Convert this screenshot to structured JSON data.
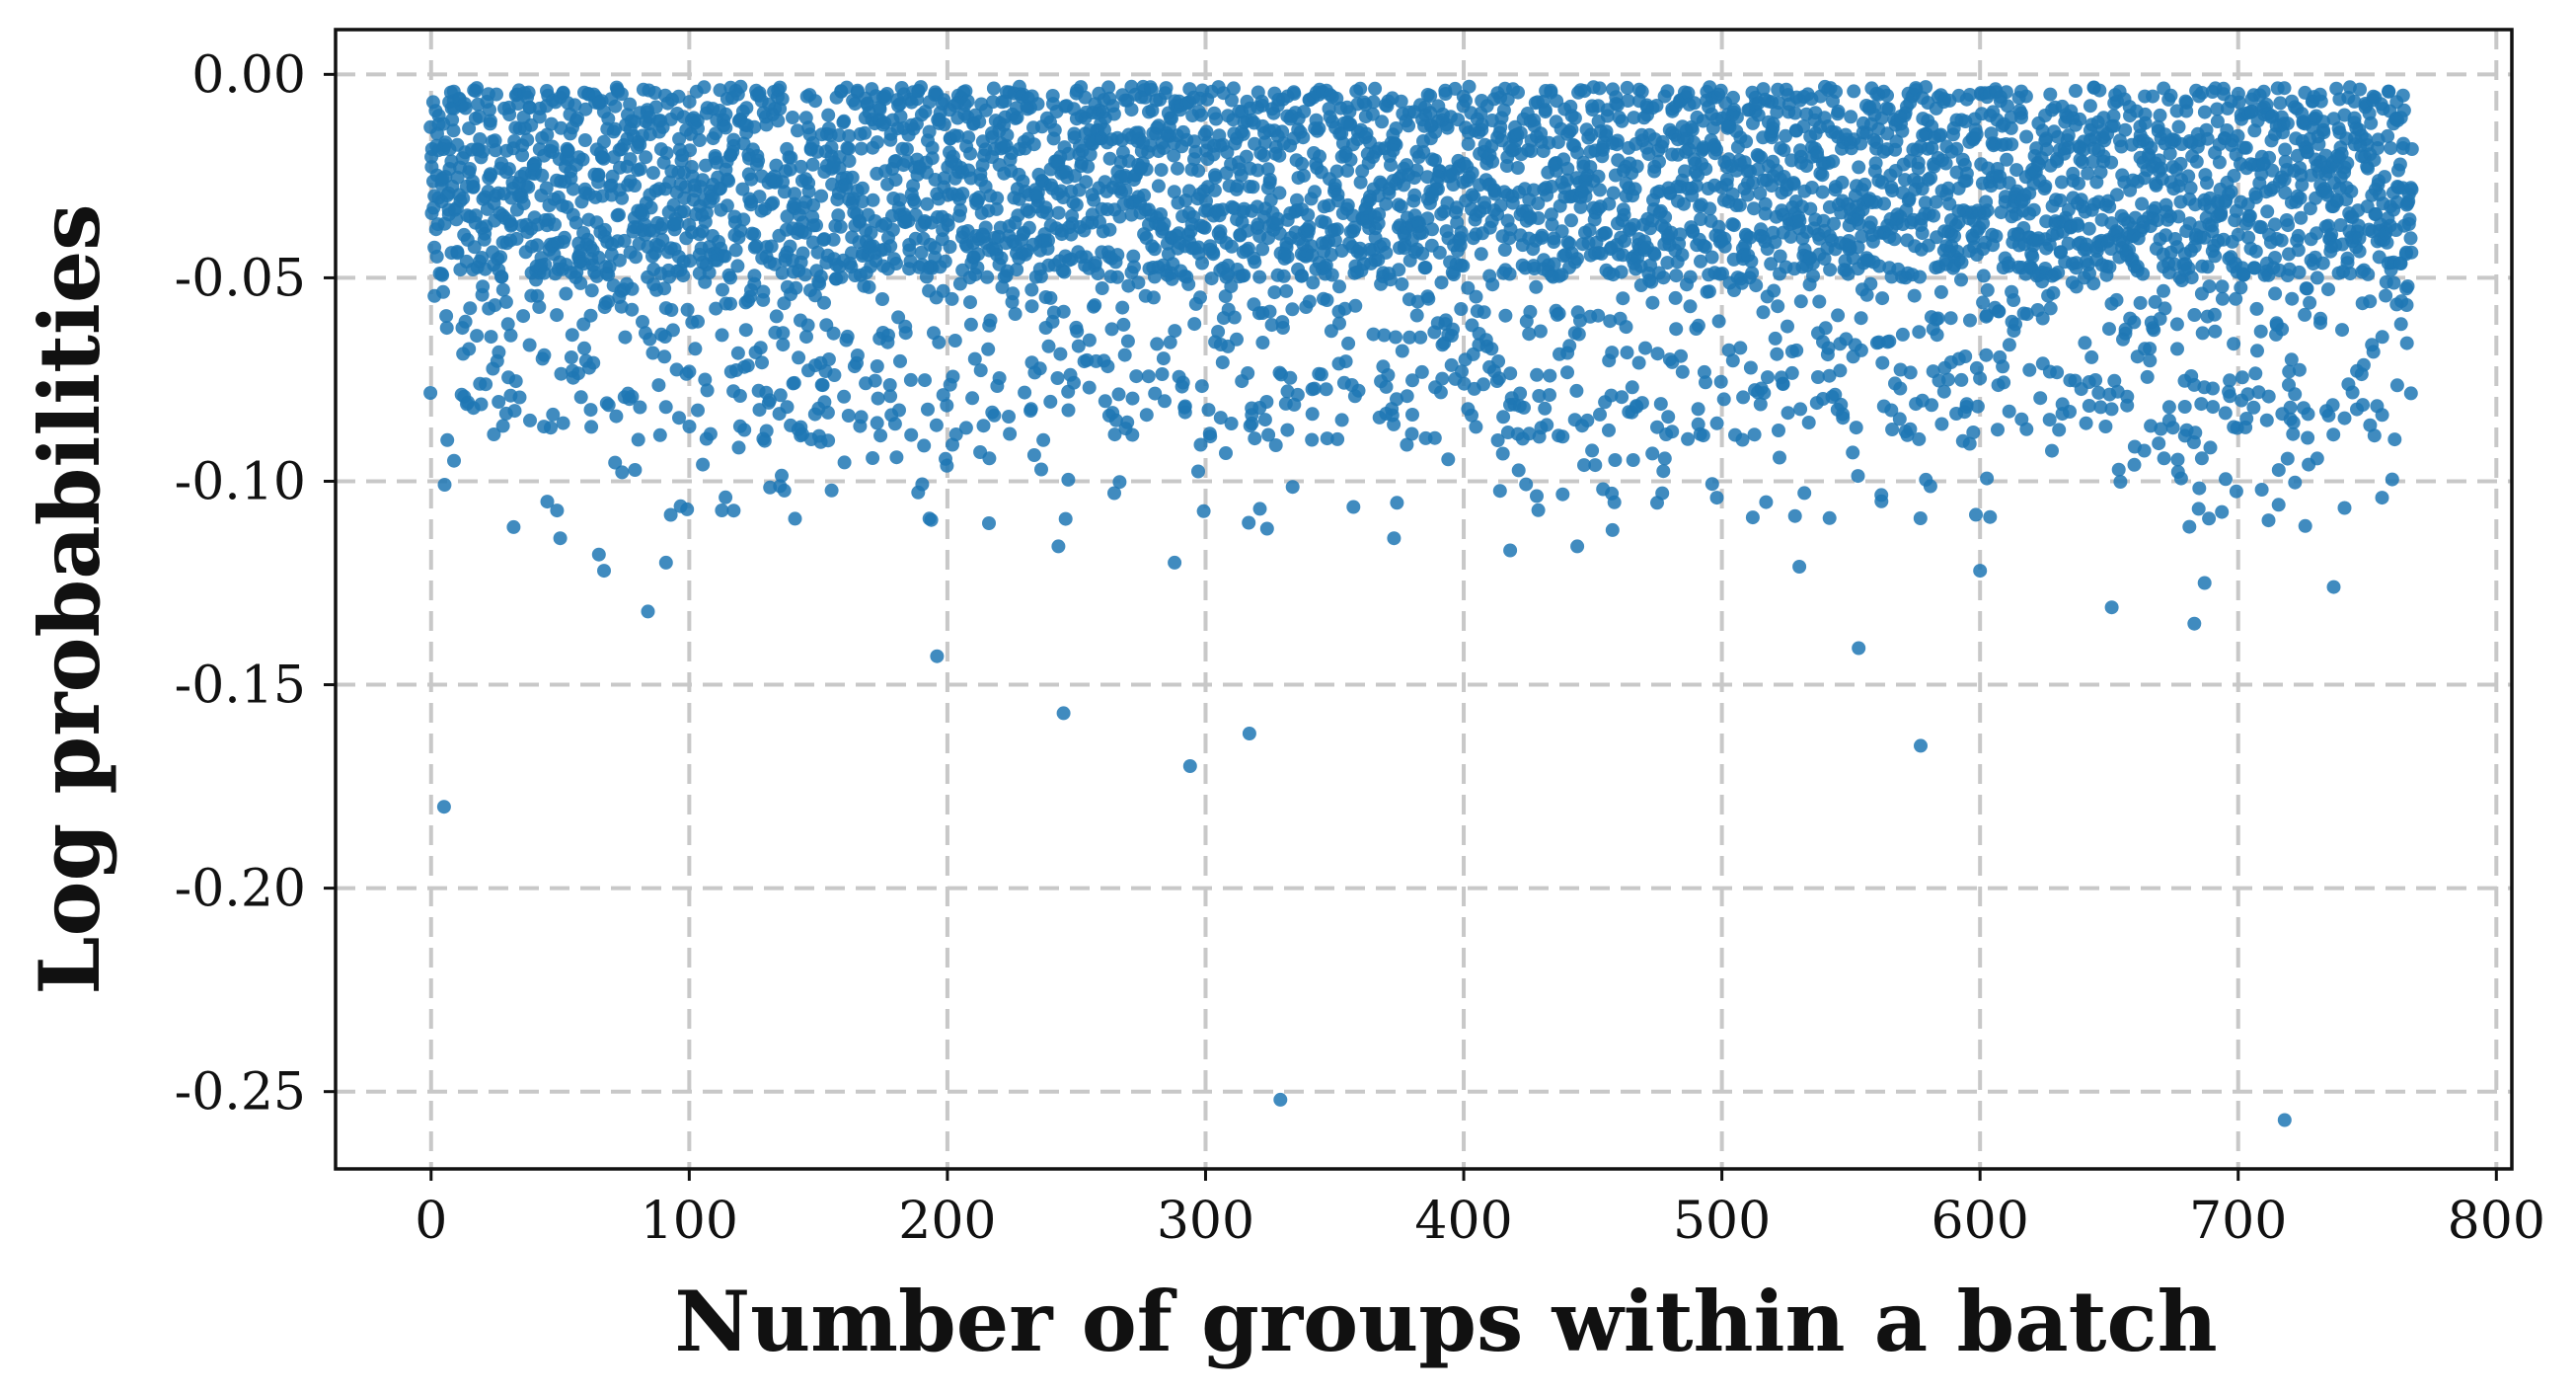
{
  "chart_data": {
    "type": "scatter",
    "title": "",
    "xlabel": "Number of groups within a batch",
    "ylabel": "Log probabilities",
    "xlim": [
      -37,
      806
    ],
    "ylim": [
      -0.269,
      0.011
    ],
    "xticks": [
      0,
      100,
      200,
      300,
      400,
      500,
      600,
      700,
      800
    ],
    "xtick_labels": [
      "0",
      "100",
      "200",
      "300",
      "400",
      "500",
      "600",
      "700",
      "800"
    ],
    "yticks": [
      0.0,
      -0.05,
      -0.1,
      -0.15,
      -0.2,
      -0.25
    ],
    "ytick_labels": [
      "0.00",
      "-0.05",
      "-0.10",
      "-0.15",
      "-0.20",
      "-0.25"
    ],
    "grid": true,
    "marker_color": "#1f77b4",
    "n_points_per_x": 6,
    "x_range": [
      0,
      767
    ],
    "dense_band": [
      -0.05,
      -0.003
    ],
    "outliers": [
      {
        "x": 5,
        "y": -0.18
      },
      {
        "x": 45,
        "y": -0.105
      },
      {
        "x": 50,
        "y": -0.114
      },
      {
        "x": 65,
        "y": -0.118
      },
      {
        "x": 67,
        "y": -0.122
      },
      {
        "x": 84,
        "y": -0.132
      },
      {
        "x": 91,
        "y": -0.12
      },
      {
        "x": 196,
        "y": -0.143
      },
      {
        "x": 243,
        "y": -0.116
      },
      {
        "x": 245,
        "y": -0.157
      },
      {
        "x": 288,
        "y": -0.12
      },
      {
        "x": 294,
        "y": -0.17
      },
      {
        "x": 317,
        "y": -0.162
      },
      {
        "x": 329,
        "y": -0.252
      },
      {
        "x": 373,
        "y": -0.114
      },
      {
        "x": 418,
        "y": -0.117
      },
      {
        "x": 444,
        "y": -0.116
      },
      {
        "x": 530,
        "y": -0.121
      },
      {
        "x": 553,
        "y": -0.141
      },
      {
        "x": 577,
        "y": -0.165
      },
      {
        "x": 600,
        "y": -0.122
      },
      {
        "x": 651,
        "y": -0.131
      },
      {
        "x": 683,
        "y": -0.135
      },
      {
        "x": 687,
        "y": -0.125
      },
      {
        "x": 718,
        "y": -0.257
      },
      {
        "x": 726,
        "y": -0.111
      },
      {
        "x": 737,
        "y": -0.126
      }
    ]
  }
}
